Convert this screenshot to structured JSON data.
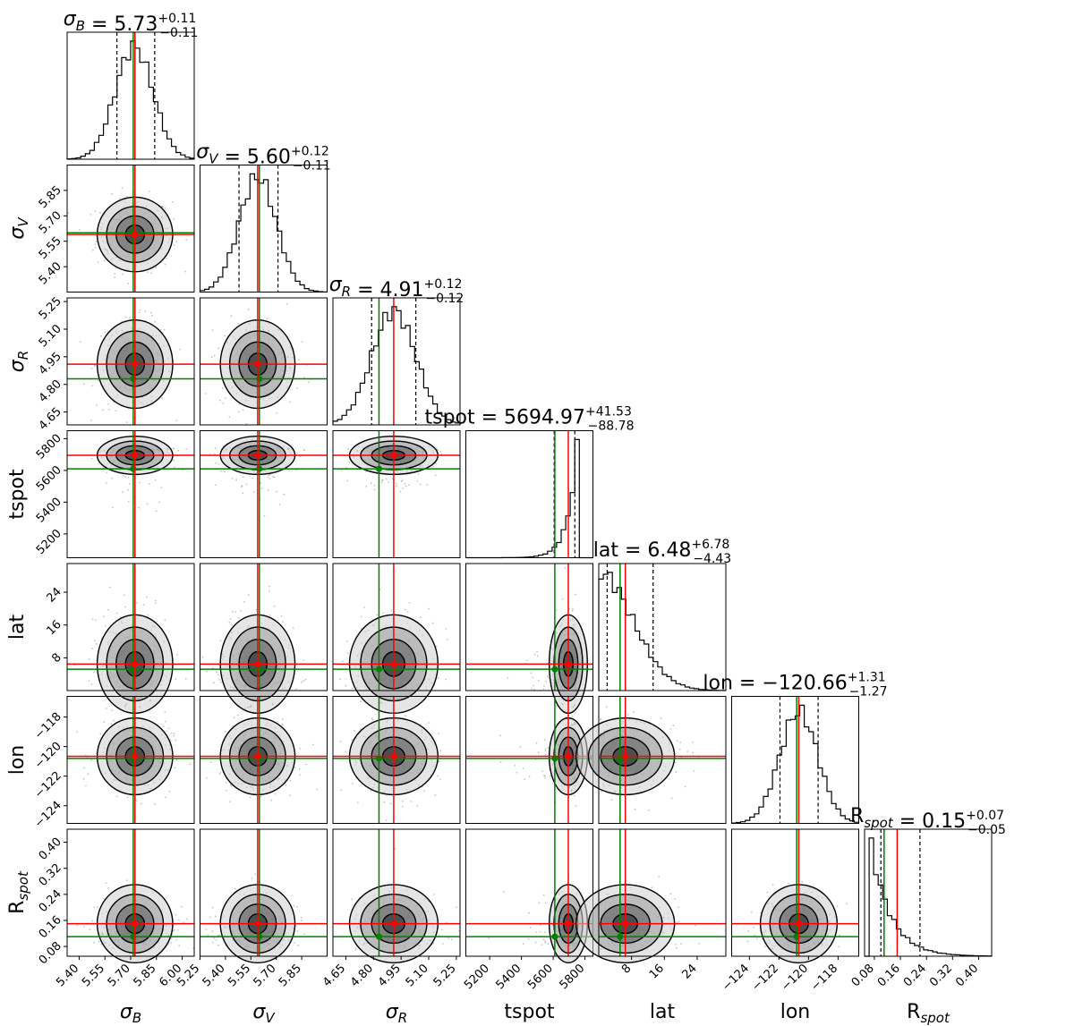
{
  "chart_data": {
    "type": "corner",
    "params": [
      {
        "key": "sB",
        "label_main": "σ",
        "label_sub": "B",
        "median": 5.73,
        "plus": "+0.11",
        "minus": "−0.11",
        "value": "5.73",
        "lim": [
          5.33,
          6.07
        ],
        "ticks": [
          5.4,
          5.55,
          5.7,
          5.85,
          6.0
        ],
        "tick_labels": [
          "5.40",
          "5.55",
          "5.70",
          "5.85",
          "6.00"
        ],
        "red": 5.725,
        "green": 5.715,
        "dash": [
          5.62,
          5.84
        ],
        "mu": 5.72,
        "sd": 0.11
      },
      {
        "key": "sV",
        "label_main": "σ",
        "label_sub": "V",
        "median": 5.6,
        "plus": "+0.12",
        "minus": "−0.11",
        "value": "5.60",
        "lim": [
          5.25,
          6.0
        ],
        "ticks": [
          5.25,
          5.4,
          5.55,
          5.7,
          5.85
        ],
        "tick_labels": [
          "5.25",
          "5.40",
          "5.55",
          "5.70",
          "5.85"
        ],
        "red": 5.59,
        "green": 5.6,
        "dash": [
          5.48,
          5.71
        ],
        "mu": 5.59,
        "sd": 0.11
      },
      {
        "key": "sR",
        "label_main": "σ",
        "label_sub": "R",
        "median": 4.91,
        "plus": "+0.12",
        "minus": "−0.12",
        "value": "4.91",
        "lim": [
          4.58,
          5.27
        ],
        "ticks": [
          4.65,
          4.8,
          4.95,
          5.1,
          5.25
        ],
        "tick_labels": [
          "4.65",
          "4.80",
          "4.95",
          "5.10",
          "5.25"
        ],
        "red": 4.91,
        "green": 4.83,
        "dash": [
          4.79,
          5.03
        ],
        "mu": 4.91,
        "sd": 0.12
      },
      {
        "key": "tspot",
        "label_main": "tspot",
        "label_sub": "",
        "median": 5694.97,
        "plus": "+41.53",
        "minus": "−88.78",
        "value": "5694.97",
        "lim": [
          5050,
          5850
        ],
        "ticks": [
          5200,
          5400,
          5600,
          5800
        ],
        "tick_labels": [
          "5200",
          "5400",
          "5600",
          "5800"
        ],
        "red": 5695,
        "green": 5610,
        "dash": [
          5606,
          5736
        ],
        "mu": 5700,
        "sd": 60
      },
      {
        "key": "lat",
        "label_main": "lat",
        "label_sub": "",
        "median": 6.48,
        "plus": "+6.78",
        "minus": "−4.43",
        "value": "6.48",
        "lim": [
          0,
          31
        ],
        "ticks": [
          8,
          16,
          24
        ],
        "tick_labels": [
          "8",
          "16",
          "24"
        ],
        "red": 6.48,
        "green": 5.2,
        "dash": [
          2.05,
          13.26
        ],
        "mu": 6.5,
        "sd": 6
      },
      {
        "key": "lon",
        "label_main": "lon",
        "label_sub": "",
        "median": -120.66,
        "plus": "+1.31",
        "minus": "−1.27",
        "value": "−120.66",
        "lim": [
          -125.2,
          -116.6
        ],
        "ticks": [
          -124,
          -122,
          -120,
          -118
        ],
        "tick_labels": [
          "−124",
          "−122",
          "−120",
          "−118"
        ],
        "red": -120.66,
        "green": -120.8,
        "dash": [
          -121.93,
          -119.35
        ],
        "mu": -120.66,
        "sd": 1.3
      },
      {
        "key": "rspot",
        "label_main": "R",
        "label_sub": "spot",
        "median": 0.15,
        "plus": "+0.07",
        "minus": "−0.05",
        "value": "0.15",
        "lim": [
          0.05,
          0.44
        ],
        "ticks": [
          0.08,
          0.16,
          0.24,
          0.32,
          0.4
        ],
        "tick_labels": [
          "0.08",
          "0.16",
          "0.24",
          "0.32",
          "0.40"
        ],
        "red": 0.15,
        "green": 0.11,
        "dash": [
          0.1,
          0.22
        ],
        "mu": 0.15,
        "sd": 0.06
      }
    ],
    "y_tick_sets": {
      "sV": {
        "ticks": [
          5.4,
          5.55,
          5.7,
          5.85
        ],
        "tick_labels": [
          "5.40",
          "5.55",
          "5.70",
          "5.85"
        ]
      },
      "sR": {
        "ticks": [
          4.65,
          4.8,
          4.95,
          5.1,
          5.25
        ],
        "tick_labels": [
          "4.65",
          "4.80",
          "4.95",
          "5.10",
          "5.25"
        ]
      },
      "tspot": {
        "ticks": [
          5200,
          5400,
          5600,
          5800
        ],
        "tick_labels": [
          "5200",
          "5400",
          "5600",
          "5800"
        ]
      },
      "lat": {
        "ticks": [
          8,
          16,
          24
        ],
        "tick_labels": [
          "8",
          "16",
          "24"
        ]
      },
      "lon": {
        "ticks": [
          -124,
          -122,
          -120,
          -118
        ],
        "tick_labels": [
          "−124",
          "−122",
          "−120",
          "−118"
        ]
      },
      "rspot": {
        "ticks": [
          0.08,
          0.16,
          0.24,
          0.32,
          0.4
        ],
        "tick_labels": [
          "0.08",
          "0.16",
          "0.24",
          "0.32",
          "0.40"
        ]
      }
    },
    "colors": {
      "red": "#ff0000",
      "green": "#008000",
      "line": "#000000",
      "samples": "#888888"
    }
  }
}
